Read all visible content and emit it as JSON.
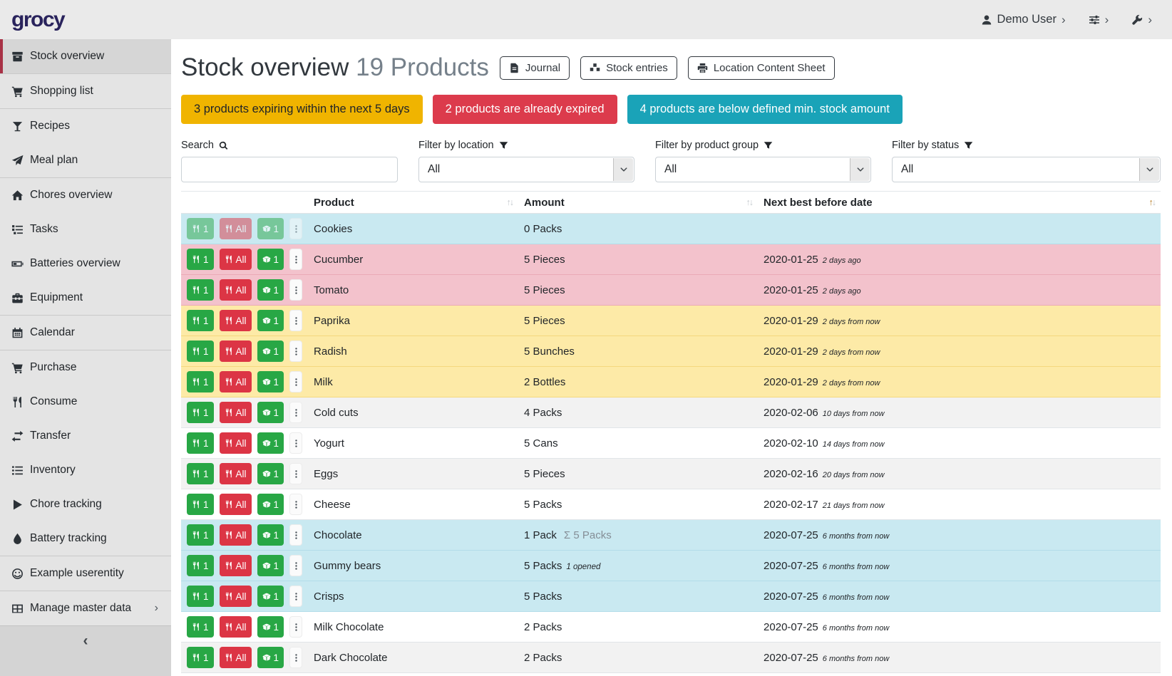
{
  "app": {
    "logo_text": "grocy"
  },
  "header": {
    "user_label": "Demo User"
  },
  "colors": {
    "sidebar_active_border": "#a83246",
    "logo": "#29235c",
    "button_green": "#28a745",
    "button_red": "#dc3545",
    "alert_warning": "#f0b400",
    "alert_danger": "#dc3b4c",
    "alert_info": "#1aa3b8",
    "row_below_min_stock": "#c9e9f1",
    "row_expired": "#f3c2cc",
    "row_expiring": "#fdeaa7"
  },
  "sidebar": {
    "collapse_icon": "chevron-left",
    "groups": [
      {
        "items": [
          {
            "label": "Stock overview",
            "icon": "box",
            "active": true
          }
        ]
      },
      {
        "items": [
          {
            "label": "Shopping list",
            "icon": "cart"
          }
        ]
      },
      {
        "items": [
          {
            "label": "Recipes",
            "icon": "cocktail"
          },
          {
            "label": "Meal plan",
            "icon": "paper-plane"
          }
        ]
      },
      {
        "items": [
          {
            "label": "Chores overview",
            "icon": "home"
          },
          {
            "label": "Tasks",
            "icon": "tasks"
          },
          {
            "label": "Batteries overview",
            "icon": "battery"
          },
          {
            "label": "Equipment",
            "icon": "toolbox"
          }
        ]
      },
      {
        "items": [
          {
            "label": "Calendar",
            "icon": "calendar"
          }
        ]
      },
      {
        "items": [
          {
            "label": "Purchase",
            "icon": "cart"
          },
          {
            "label": "Consume",
            "icon": "utensils"
          },
          {
            "label": "Transfer",
            "icon": "exchange"
          },
          {
            "label": "Inventory",
            "icon": "list"
          },
          {
            "label": "Chore tracking",
            "icon": "play"
          },
          {
            "label": "Battery tracking",
            "icon": "drop"
          }
        ]
      },
      {
        "items": [
          {
            "label": "Example userentity",
            "icon": "smiley"
          }
        ]
      },
      {
        "items": [
          {
            "label": "Manage master data",
            "icon": "table",
            "chevron": true
          }
        ]
      }
    ]
  },
  "page": {
    "title": "Stock overview",
    "subtitle": "19 Products",
    "toolbar": [
      {
        "label": "Journal",
        "icon": "file"
      },
      {
        "label": "Stock entries",
        "icon": "boxes"
      },
      {
        "label": "Location Content Sheet",
        "icon": "print"
      }
    ],
    "alerts": [
      {
        "text": "3 products expiring within the next 5 days",
        "type": "warning"
      },
      {
        "text": "2 products are already expired",
        "type": "danger"
      },
      {
        "text": "4 products are below defined min. stock amount",
        "type": "info"
      }
    ],
    "filters": {
      "search": {
        "label": "Search",
        "value": ""
      },
      "location": {
        "label": "Filter by location",
        "value": "All"
      },
      "product_group": {
        "label": "Filter by product group",
        "value": "All"
      },
      "status": {
        "label": "Filter by status",
        "value": "All"
      }
    },
    "table": {
      "columns": [
        {
          "label": "Product",
          "sorted": null
        },
        {
          "label": "Amount",
          "sorted": null
        },
        {
          "label": "Next best before date",
          "sorted": "asc"
        }
      ],
      "actions": {
        "consume_one": "1",
        "consume_all": "All",
        "open_one": "1"
      },
      "rows": [
        {
          "product": "Cookies",
          "amount": "0 Packs",
          "date": "",
          "date_relative": "",
          "status": "below-min",
          "disabled": true
        },
        {
          "product": "Cucumber",
          "amount": "5 Pieces",
          "date": "2020-01-25",
          "date_relative": "2 days ago",
          "status": "expired"
        },
        {
          "product": "Tomato",
          "amount": "5 Pieces",
          "date": "2020-01-25",
          "date_relative": "2 days ago",
          "status": "expired"
        },
        {
          "product": "Paprika",
          "amount": "5 Pieces",
          "date": "2020-01-29",
          "date_relative": "2 days from now",
          "status": "expiring"
        },
        {
          "product": "Radish",
          "amount": "5 Bunches",
          "date": "2020-01-29",
          "date_relative": "2 days from now",
          "status": "expiring"
        },
        {
          "product": "Milk",
          "amount": "2 Bottles",
          "date": "2020-01-29",
          "date_relative": "2 days from now",
          "status": "expiring"
        },
        {
          "product": "Cold cuts",
          "amount": "4 Packs",
          "date": "2020-02-06",
          "date_relative": "10 days from now",
          "status": "ok"
        },
        {
          "product": "Yogurt",
          "amount": "5 Cans",
          "date": "2020-02-10",
          "date_relative": "14 days from now",
          "status": "ok"
        },
        {
          "product": "Eggs",
          "amount": "5 Pieces",
          "date": "2020-02-16",
          "date_relative": "20 days from now",
          "status": "ok"
        },
        {
          "product": "Cheese",
          "amount": "5 Packs",
          "date": "2020-02-17",
          "date_relative": "21 days from now",
          "status": "ok"
        },
        {
          "product": "Chocolate",
          "amount": "1 Pack",
          "amount_total": "Σ 5 Packs",
          "date": "2020-07-25",
          "date_relative": "6 months from now",
          "status": "below-min"
        },
        {
          "product": "Gummy bears",
          "amount": "5 Packs",
          "amount_opened": "1 opened",
          "date": "2020-07-25",
          "date_relative": "6 months from now",
          "status": "below-min"
        },
        {
          "product": "Crisps",
          "amount": "5 Packs",
          "date": "2020-07-25",
          "date_relative": "6 months from now",
          "status": "below-min"
        },
        {
          "product": "Milk Chocolate",
          "amount": "2 Packs",
          "date": "2020-07-25",
          "date_relative": "6 months from now",
          "status": "ok"
        },
        {
          "product": "Dark Chocolate",
          "amount": "2 Packs",
          "date": "2020-07-25",
          "date_relative": "6 months from now",
          "status": "ok"
        },
        {
          "product": "",
          "amount": "",
          "date": "",
          "date_relative": "",
          "status": "ok",
          "partial": true
        }
      ]
    }
  }
}
